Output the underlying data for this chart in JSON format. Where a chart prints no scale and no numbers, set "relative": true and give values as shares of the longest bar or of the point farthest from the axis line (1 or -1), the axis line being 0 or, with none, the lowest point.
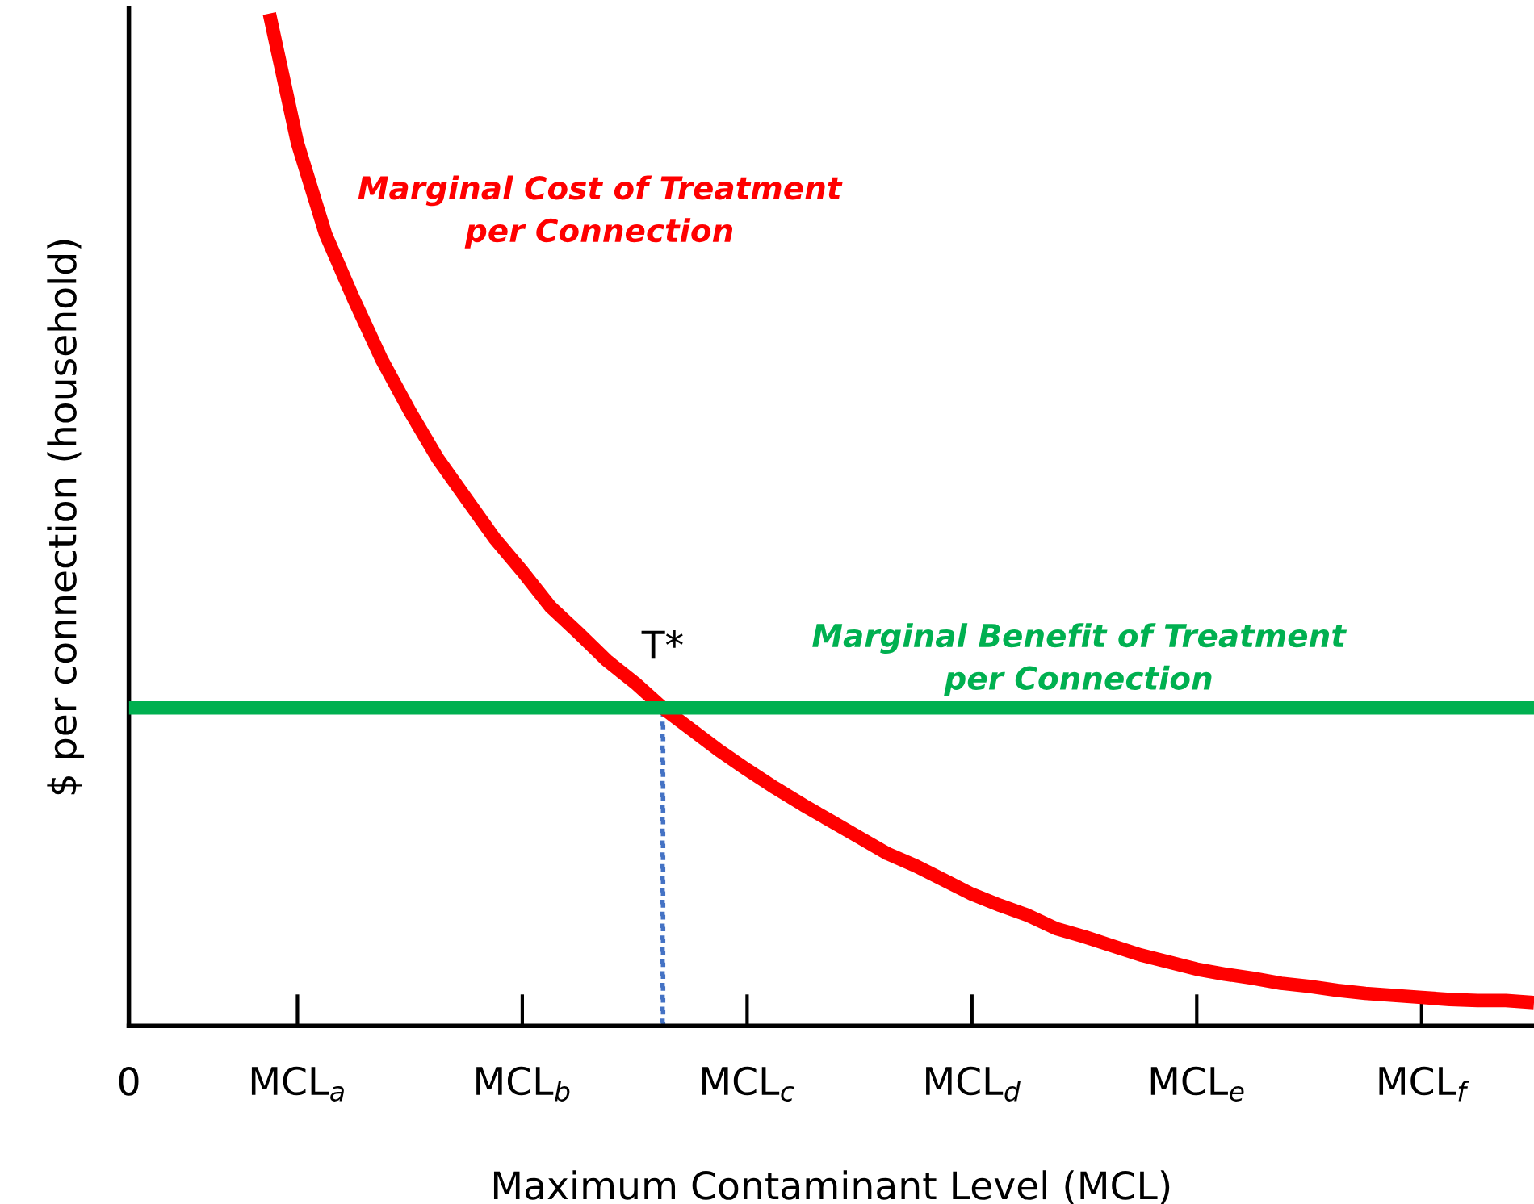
{
  "chart_data": {
    "type": "line",
    "relative": true,
    "xlabel": "Maximum Contaminant Level (MCL)",
    "ylabel": "$ per connection (household)",
    "categories": [
      "0",
      null,
      null,
      null,
      null,
      null,
      "MCL$_{a}$",
      null,
      null,
      null,
      null,
      null,
      null,
      null,
      "MCL$_{b}$",
      null,
      null,
      null,
      null,
      null,
      null,
      null,
      "MCL$_{c}$",
      null,
      null,
      null,
      null,
      null,
      null,
      null,
      "MCL$_{d}$",
      null,
      null,
      null,
      null,
      null,
      null,
      null,
      "MCL$_{e}$",
      null,
      null,
      null,
      null,
      null,
      null,
      null,
      "MCL$_{f}$",
      null,
      null,
      null,
      null
    ],
    "tick_labels": "x",
    "grid": false,
    "legend": false,
    "marker": "none",
    "series": [
      {
        "name": "Marginal Cost of Treatment per Connection",
        "color": "#ff0000",
        "values": [
          null,
          null,
          null,
          null,
          null,
          1.0,
          0.872,
          0.782,
          0.718,
          0.658,
          0.607,
          0.56,
          0.521,
          0.482,
          0.449,
          0.414,
          0.388,
          0.361,
          0.339,
          0.314,
          0.293,
          0.272,
          0.253,
          0.235,
          0.218,
          0.202,
          0.186,
          0.17,
          0.158,
          0.144,
          0.13,
          0.119,
          0.109,
          0.096,
          0.088,
          0.079,
          0.07,
          0.063,
          0.056,
          0.051,
          0.047,
          0.042,
          0.039,
          0.035,
          0.032,
          0.03,
          0.028,
          0.026,
          0.025,
          0.025,
          0.023
        ]
      },
      {
        "name": "Marginal Benefit of Treatment per Connection",
        "color": "#00b050",
        "values": [
          0.314,
          0.314,
          0.314,
          0.314,
          0.314,
          0.314,
          0.314,
          0.314,
          0.314,
          0.314,
          0.314,
          0.314,
          0.314,
          0.314,
          0.314,
          0.314,
          0.314,
          0.314,
          0.314,
          0.314,
          0.314,
          0.314,
          0.314,
          0.314,
          0.314,
          0.314,
          0.314,
          0.314,
          0.314,
          0.314,
          0.314,
          0.314,
          0.314,
          0.314,
          0.314,
          0.314,
          0.314,
          0.314,
          0.314,
          0.314,
          0.314,
          0.314,
          0.314,
          0.314,
          0.314,
          0.314,
          0.314,
          0.314,
          0.314,
          0.314,
          0.314
        ]
      },
      {
        "type": "bar",
        "color": "#4472c4",
        "line_style": "dotted",
        "values": [
          null,
          null,
          null,
          null,
          null,
          null,
          null,
          null,
          null,
          null,
          null,
          null,
          null,
          null,
          null,
          null,
          null,
          null,
          null,
          0.314,
          null,
          null,
          null,
          null,
          null,
          null,
          null,
          null,
          null,
          null,
          null,
          null,
          null,
          null,
          null,
          null,
          null,
          null,
          null,
          null,
          null,
          null,
          null,
          null,
          null,
          null,
          null,
          null,
          null,
          null,
          null
        ]
      }
    ],
    "annotations": [
      "T*"
    ]
  }
}
